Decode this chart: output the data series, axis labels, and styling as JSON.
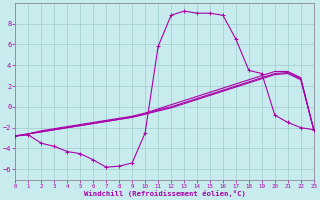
{
  "xlabel": "Windchill (Refroidissement éolien,°C)",
  "bg_color": "#c8ecee",
  "grid_color": "#a0cccc",
  "line_color": "#aa00aa",
  "spine_color": "#888899",
  "xlim": [
    0,
    23
  ],
  "ylim": [
    -7,
    10
  ],
  "xticks": [
    0,
    1,
    2,
    3,
    4,
    5,
    6,
    7,
    8,
    9,
    10,
    11,
    12,
    13,
    14,
    15,
    16,
    17,
    18,
    19,
    20,
    21,
    22,
    23
  ],
  "yticks": [
    -6,
    -4,
    -2,
    0,
    2,
    4,
    6,
    8
  ],
  "curve_x": [
    0,
    1,
    2,
    3,
    4,
    5,
    6,
    7,
    8,
    9,
    10,
    11,
    12,
    13,
    14,
    15,
    16,
    17,
    18,
    19,
    20,
    21,
    22,
    23
  ],
  "curve_y": [
    -2.8,
    -2.7,
    -3.5,
    -3.8,
    -4.3,
    -4.5,
    -5.1,
    -5.8,
    -5.7,
    -5.4,
    -2.5,
    5.8,
    8.8,
    9.2,
    9.0,
    9.0,
    8.8,
    6.5,
    3.5,
    3.2,
    -0.8,
    -1.5,
    -2.0,
    -2.2
  ],
  "diag1_x": [
    0,
    1,
    2,
    3,
    4,
    5,
    6,
    7,
    8,
    9,
    10,
    11,
    12,
    13,
    14,
    15,
    16,
    17,
    18,
    19,
    20,
    21,
    22,
    23
  ],
  "diag1_y": [
    -2.8,
    -2.6,
    -2.4,
    -2.2,
    -2.0,
    -1.8,
    -1.6,
    -1.4,
    -1.2,
    -1.0,
    -0.7,
    -0.4,
    -0.1,
    0.3,
    0.7,
    1.1,
    1.5,
    1.9,
    2.3,
    2.7,
    3.1,
    3.2,
    2.6,
    -2.2
  ],
  "diag2_x": [
    0,
    1,
    2,
    3,
    4,
    5,
    6,
    7,
    8,
    9,
    10,
    11,
    12,
    13,
    14,
    15,
    16,
    17,
    18,
    19,
    20,
    21,
    22,
    23
  ],
  "diag2_y": [
    -2.8,
    -2.6,
    -2.4,
    -2.2,
    -2.0,
    -1.8,
    -1.6,
    -1.4,
    -1.2,
    -1.0,
    -0.7,
    -0.3,
    0.0,
    0.4,
    0.8,
    1.2,
    1.6,
    2.0,
    2.4,
    2.8,
    3.2,
    3.3,
    2.7,
    -2.2
  ],
  "diag3_x": [
    0,
    1,
    2,
    3,
    4,
    5,
    6,
    7,
    8,
    9,
    10,
    11,
    12,
    13,
    14,
    15,
    16,
    17,
    18,
    19,
    20,
    21,
    22,
    23
  ],
  "diag3_y": [
    -2.8,
    -2.6,
    -2.3,
    -2.1,
    -1.9,
    -1.7,
    -1.5,
    -1.3,
    -1.1,
    -0.9,
    -0.6,
    -0.2,
    0.2,
    0.6,
    1.0,
    1.4,
    1.8,
    2.2,
    2.6,
    3.0,
    3.4,
    3.4,
    2.8,
    -2.2
  ]
}
